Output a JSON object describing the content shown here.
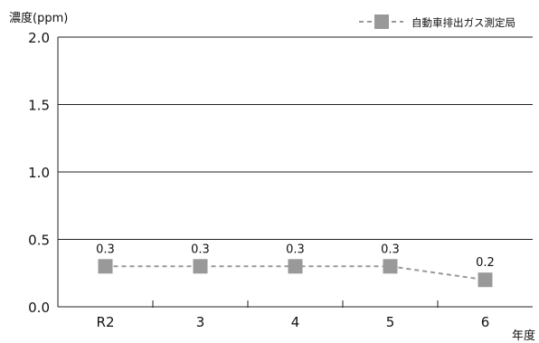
{
  "chart_data": {
    "type": "line",
    "ylabel": "濃度(ppm)",
    "xlabel": "年度",
    "categories": [
      "R2",
      "3",
      "4",
      "5",
      "6"
    ],
    "ylim": [
      0,
      2.0
    ],
    "yticks": [
      "0.0",
      "0.5",
      "1.0",
      "1.5",
      "2.0"
    ],
    "grid": true,
    "legend_position": "top-right",
    "series": [
      {
        "name": "自動車排出ガス測定局",
        "values": [
          0.3,
          0.3,
          0.3,
          0.3,
          0.2
        ],
        "labels": [
          "0.3",
          "0.3",
          "0.3",
          "0.3",
          "0.2"
        ],
        "color": "#999999",
        "line_style": "dashed",
        "marker": "square"
      }
    ]
  }
}
